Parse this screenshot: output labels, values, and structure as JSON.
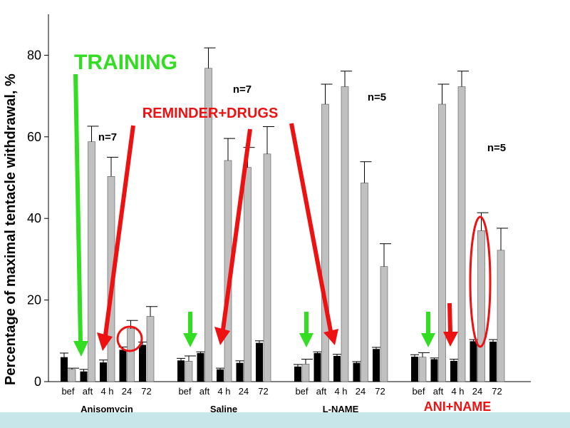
{
  "chart_data": {
    "type": "bar",
    "ylabel": "Percentage of maximal tentacle withdrawal, %",
    "ylim": [
      0,
      90
    ],
    "y_ticks": [
      "0",
      "20",
      "40",
      "60",
      "80"
    ],
    "grid": false,
    "groups": [
      {
        "name": "Anisomycin",
        "categories": [
          "bef",
          "aft",
          "4 h",
          "24",
          "72"
        ],
        "black_values": [
          6.0,
          2.5,
          4.7,
          7.8,
          9.0
        ],
        "black_errors": [
          1.0,
          0.5,
          0.6,
          0.7,
          0.7
        ],
        "gray_values": [
          3.0,
          58.8,
          50.3,
          13.0,
          16.0
        ],
        "gray_errors": [
          0.3,
          3.8,
          4.7,
          2.0,
          2.4
        ],
        "n_label": "n=7"
      },
      {
        "name": "Saline",
        "categories": [
          "bef",
          "aft",
          "4 h",
          "24",
          "72"
        ],
        "black_values": [
          5.2,
          7.0,
          3.0,
          4.6,
          9.5
        ],
        "black_errors": [
          0.5,
          0.3,
          0.3,
          0.5,
          0.5
        ],
        "gray_values": [
          5.0,
          76.8,
          54.2,
          52.5,
          55.8
        ],
        "gray_errors": [
          1.3,
          5.0,
          5.4,
          4.9,
          6.7
        ],
        "n_label": "n=7"
      },
      {
        "name": "L-NAME",
        "categories": [
          "bef",
          "aft",
          "4 h",
          "24",
          "72"
        ],
        "black_values": [
          3.7,
          7.0,
          6.3,
          4.6,
          8.0
        ],
        "black_errors": [
          0.5,
          0.3,
          0.4,
          0.3,
          0.4
        ],
        "gray_values": [
          4.3,
          68.0,
          72.3,
          48.7,
          28.2
        ],
        "gray_errors": [
          1.2,
          4.9,
          3.8,
          5.2,
          5.6
        ],
        "n_label": "n=5"
      },
      {
        "name": "ANI+NAME",
        "categories": [
          "bef",
          "aft",
          "4 h",
          "24",
          "72"
        ],
        "black_values": [
          6.1,
          5.5,
          5.1,
          9.9,
          9.8
        ],
        "black_errors": [
          0.5,
          0.3,
          0.4,
          0.4,
          0.5
        ],
        "gray_values": [
          6.0,
          68.0,
          72.3,
          37.0,
          32.2
        ],
        "gray_errors": [
          1.1,
          4.9,
          3.8,
          4.4,
          5.4
        ],
        "n_label": "n=5"
      }
    ],
    "annotations": {
      "training": "TRAINING",
      "reminder": "REMINDER+DRUGS"
    },
    "colors": {
      "black_bar": "#000000",
      "gray_bar": "#c0c0c0",
      "training": "#33dd22",
      "reminder": "#ee1111",
      "ani_name_label": "#ee1111",
      "bottom_strip": "#c7e6ea"
    }
  }
}
